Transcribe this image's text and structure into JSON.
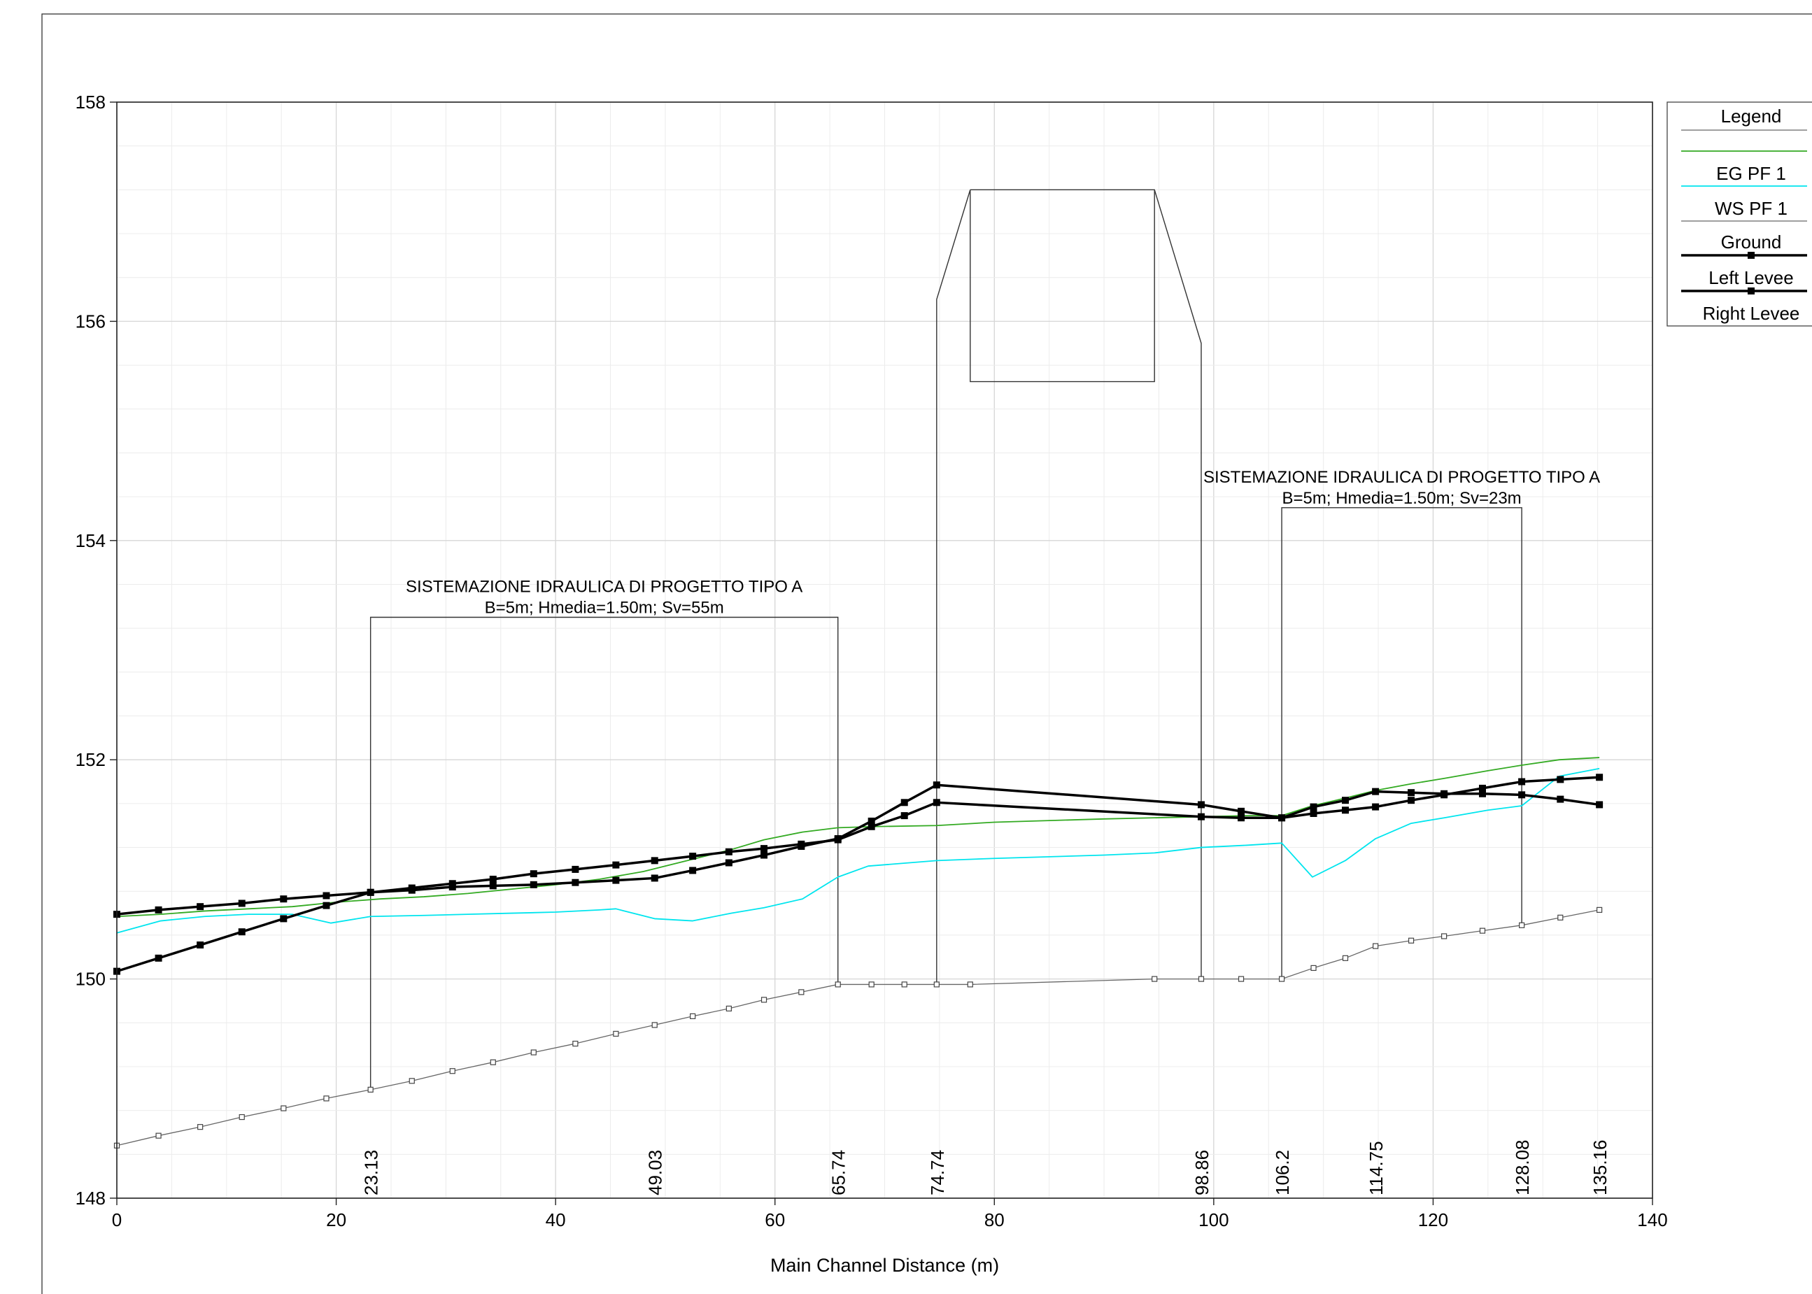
{
  "chart_data": {
    "type": "line",
    "xlabel": "Main Channel Distance (m)",
    "ylabel": "",
    "xlim": [
      0,
      140
    ],
    "ylim": [
      148,
      158
    ],
    "x_ticks": [
      0,
      20,
      40,
      60,
      80,
      100,
      120,
      140
    ],
    "y_ticks": [
      148,
      150,
      152,
      154,
      156,
      158
    ],
    "grid": true,
    "legend_position": "right",
    "legend": {
      "title": "Legend",
      "entries": [
        {
          "label": "EG  PF 1",
          "color": "#33aa22",
          "marker": "none",
          "width": 1.8
        },
        {
          "label": "WS  PF 1",
          "color": "#00e5ee",
          "marker": "none",
          "width": 1.8
        },
        {
          "label": "Ground",
          "color": "#666666",
          "marker": "hollow-square",
          "width": 1.3
        },
        {
          "label": "Left Levee",
          "color": "#000000",
          "marker": "square",
          "width": 3.5
        },
        {
          "label": "Right Levee",
          "color": "#000000",
          "marker": "square",
          "width": 3.5
        }
      ]
    },
    "station_labels": [
      {
        "x": 23.13,
        "label": "23.13"
      },
      {
        "x": 49.03,
        "label": "49.03"
      },
      {
        "x": 65.74,
        "label": "65.74"
      },
      {
        "x": 74.74,
        "label": "74.74"
      },
      {
        "x": 98.86,
        "label": "98.86"
      },
      {
        "x": 106.2,
        "label": "106.2"
      },
      {
        "x": 114.75,
        "label": "114.75"
      },
      {
        "x": 128.08,
        "label": "128.08"
      },
      {
        "x": 135.16,
        "label": "135.16"
      }
    ],
    "annotations": [
      {
        "line1": "SISTEMAZIONE IDRAULICA DI PROGETTO TIPO A",
        "line2": "B=5m; Hmedia=1.50m; Sv=55m",
        "x_from": 23.13,
        "x_to": 65.74,
        "top_y": 153.3
      },
      {
        "line1": "SISTEMAZIONE IDRAULICA DI PROGETTO TIPO A",
        "line2": "B=5m; Hmedia=1.50m; Sv=23m",
        "x_from": 106.2,
        "x_to": 128.08,
        "top_y": 154.3
      }
    ],
    "structure_outline": {
      "x": [
        74.74,
        74.74,
        77.8,
        77.8,
        94.6,
        94.6,
        77.8,
        77.8,
        94.6,
        98.86,
        98.86
      ],
      "y": [
        149.95,
        156.2,
        157.2,
        155.45,
        155.45,
        157.2,
        157.2,
        157.2,
        157.2,
        155.8,
        150.0
      ]
    },
    "series": [
      {
        "name": "EG  PF 1",
        "x": [
          0,
          4,
          8,
          12,
          16,
          20,
          24,
          28,
          32,
          36,
          40,
          44,
          48,
          52,
          56,
          59,
          62.5,
          65.74,
          69,
          74.74,
          80,
          90,
          98.86,
          103,
          106.2,
          109,
          112,
          114.75,
          118,
          121,
          125,
          128.08,
          131.5,
          135.16
        ],
        "y": [
          150.57,
          150.59,
          150.62,
          150.64,
          150.66,
          150.7,
          150.73,
          150.75,
          150.78,
          150.82,
          150.86,
          150.91,
          150.98,
          151.08,
          151.18,
          151.27,
          151.34,
          151.38,
          151.39,
          151.4,
          151.43,
          151.46,
          151.48,
          151.49,
          151.49,
          151.58,
          151.65,
          151.72,
          151.78,
          151.83,
          151.9,
          151.95,
          152.0,
          152.02
        ]
      },
      {
        "name": "WS  PF 1",
        "x": [
          0,
          4,
          8,
          12,
          16,
          19.5,
          23.13,
          28,
          32,
          36,
          40,
          44,
          45.5,
          49.03,
          52.5,
          56,
          59,
          62.5,
          65.74,
          68.5,
          74.74,
          80,
          90,
          94.6,
          98.86,
          103,
          106.2,
          109,
          112,
          114.75,
          118,
          121,
          125,
          128.08,
          131.5,
          135.16
        ],
        "y": [
          150.42,
          150.53,
          150.57,
          150.59,
          150.59,
          150.51,
          150.57,
          150.58,
          150.59,
          150.6,
          150.61,
          150.63,
          150.64,
          150.55,
          150.53,
          150.6,
          150.65,
          150.73,
          150.93,
          151.03,
          151.08,
          151.1,
          151.13,
          151.15,
          151.2,
          151.22,
          151.24,
          150.93,
          151.08,
          151.28,
          151.42,
          151.47,
          151.54,
          151.58,
          151.85,
          151.92
        ]
      },
      {
        "name": "Ground",
        "x": [
          0,
          3.8,
          7.6,
          11.4,
          15.2,
          19.1,
          23.13,
          26.9,
          30.6,
          34.3,
          38.0,
          41.8,
          45.5,
          49.03,
          52.5,
          55.8,
          59.0,
          62.4,
          65.74,
          68.8,
          71.8,
          74.74,
          77.8,
          94.6,
          98.86,
          102.5,
          106.2,
          109.1,
          112.0,
          114.75,
          118.0,
          121.0,
          124.5,
          128.08,
          131.6,
          135.16
        ],
        "y": [
          148.48,
          148.57,
          148.65,
          148.74,
          148.82,
          148.91,
          148.99,
          149.07,
          149.16,
          149.24,
          149.33,
          149.41,
          149.5,
          149.58,
          149.66,
          149.73,
          149.81,
          149.88,
          149.95,
          149.95,
          149.95,
          149.95,
          149.95,
          150.0,
          150.0,
          150.0,
          150.0,
          150.1,
          150.19,
          150.3,
          150.35,
          150.39,
          150.44,
          150.49,
          150.56,
          150.63
        ]
      },
      {
        "name": "Left Levee",
        "x": [
          0,
          3.8,
          7.6,
          11.4,
          15.2,
          19.1,
          23.13,
          26.9,
          30.6,
          34.3,
          38.0,
          41.8,
          45.5,
          49.03,
          52.5,
          55.8,
          59.0,
          62.4,
          65.74,
          68.8,
          71.8,
          74.74,
          98.86,
          102.5,
          106.2,
          109.1,
          112.0,
          114.75,
          118.0,
          121.0,
          124.5,
          128.08,
          131.6,
          135.16
        ],
        "y": [
          150.07,
          150.19,
          150.31,
          150.43,
          150.55,
          150.67,
          150.79,
          150.81,
          150.84,
          150.85,
          150.86,
          150.88,
          150.9,
          150.92,
          150.99,
          151.06,
          151.13,
          151.21,
          151.28,
          151.44,
          151.61,
          151.77,
          151.59,
          151.53,
          151.47,
          151.57,
          151.63,
          151.71,
          151.7,
          151.69,
          151.69,
          151.68,
          151.64,
          151.59
        ]
      },
      {
        "name": "Right Levee",
        "x": [
          0,
          3.8,
          7.6,
          11.4,
          15.2,
          19.1,
          23.13,
          26.9,
          30.6,
          34.3,
          38.0,
          41.8,
          45.5,
          49.03,
          52.5,
          55.8,
          59.0,
          62.4,
          65.74,
          68.8,
          71.8,
          74.74,
          98.86,
          102.5,
          106.2,
          109.1,
          112.0,
          114.75,
          118.0,
          121.0,
          124.5,
          128.08,
          131.6,
          135.16
        ],
        "y": [
          150.59,
          150.63,
          150.66,
          150.69,
          150.73,
          150.76,
          150.79,
          150.83,
          150.87,
          150.91,
          150.96,
          151.0,
          151.04,
          151.08,
          151.12,
          151.16,
          151.19,
          151.23,
          151.27,
          151.39,
          151.49,
          151.61,
          151.48,
          151.47,
          151.47,
          151.51,
          151.54,
          151.57,
          151.63,
          151.68,
          151.74,
          151.8,
          151.82,
          151.84
        ]
      }
    ]
  }
}
